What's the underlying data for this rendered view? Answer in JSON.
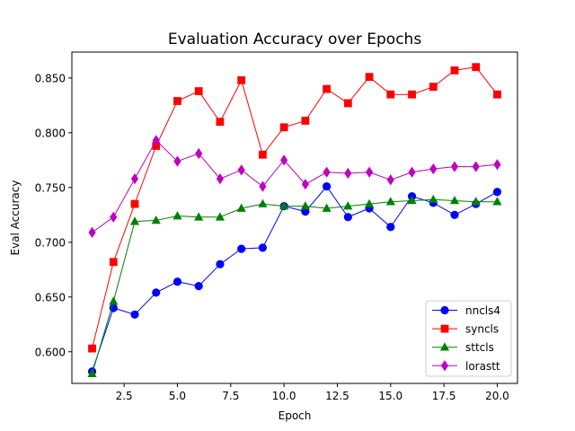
{
  "chart_data": {
    "type": "line",
    "title": "Evaluation Accuracy over Epochs",
    "xlabel": "Epoch",
    "ylabel": "Eval Accuracy",
    "xlim": [
      0.05,
      20.95
    ],
    "ylim": [
      0.5711,
      0.8737
    ],
    "xticks": [
      2.5,
      5.0,
      7.5,
      10.0,
      12.5,
      15.0,
      17.5,
      20.0
    ],
    "xtick_labels": [
      "2.5",
      "5.0",
      "7.5",
      "10.0",
      "12.5",
      "15.0",
      "17.5",
      "20.0"
    ],
    "yticks": [
      0.6,
      0.65,
      0.7,
      0.75,
      0.8,
      0.85
    ],
    "ytick_labels": [
      "0.600",
      "0.650",
      "0.700",
      "0.750",
      "0.800",
      "0.850"
    ],
    "grid": false,
    "legend_position": "lower-right",
    "x": [
      1,
      2,
      3,
      4,
      5,
      6,
      7,
      8,
      9,
      10,
      11,
      12,
      13,
      14,
      15,
      16,
      17,
      18,
      19,
      20
    ],
    "series": [
      {
        "name": "nncls4",
        "color": "#0000ff",
        "marker": "circle",
        "values": [
          0.582,
          0.64,
          0.634,
          0.654,
          0.664,
          0.66,
          0.68,
          0.694,
          0.695,
          0.733,
          0.728,
          0.751,
          0.723,
          0.731,
          0.714,
          0.742,
          0.736,
          0.725,
          0.735,
          0.746
        ]
      },
      {
        "name": "syncls",
        "color": "#ff0000",
        "marker": "square",
        "values": [
          0.603,
          0.682,
          0.735,
          0.788,
          0.829,
          0.838,
          0.81,
          0.848,
          0.78,
          0.805,
          0.811,
          0.84,
          0.827,
          0.851,
          0.835,
          0.835,
          0.842,
          0.857,
          0.86,
          0.835
        ]
      },
      {
        "name": "sttcls",
        "color": "#008000",
        "marker": "triangle",
        "values": [
          0.58,
          0.646,
          0.719,
          0.72,
          0.724,
          0.723,
          0.723,
          0.731,
          0.735,
          0.733,
          0.733,
          0.731,
          0.733,
          0.735,
          0.737,
          0.738,
          0.739,
          0.738,
          0.737,
          0.737
        ]
      },
      {
        "name": "lorastt",
        "color": "#bf00bf",
        "marker": "diamond",
        "values": [
          0.709,
          0.723,
          0.758,
          0.793,
          0.774,
          0.781,
          0.758,
          0.766,
          0.751,
          0.775,
          0.753,
          0.764,
          0.763,
          0.764,
          0.757,
          0.764,
          0.767,
          0.769,
          0.769,
          0.771
        ]
      }
    ]
  }
}
